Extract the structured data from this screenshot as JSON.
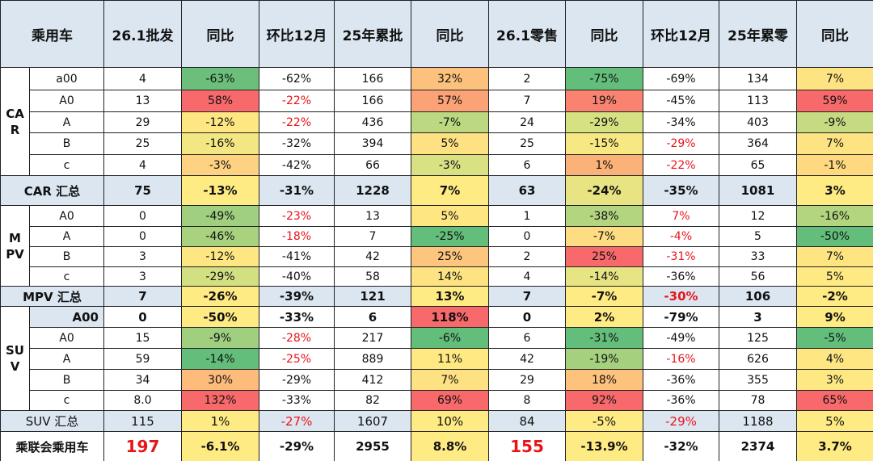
{
  "header": [
    "乘用车",
    "26.1批发",
    "同比",
    "环比12月",
    "25年累批",
    "同比",
    "26.1零售",
    "同比",
    "环比12月",
    "25年累零",
    "同比"
  ],
  "fill_columns": [
    2,
    5,
    7,
    10
  ],
  "groups": [
    {
      "label": "CAR",
      "rows": [
        {
          "cells": [
            "a00",
            "4",
            "-63%",
            "-62%",
            "166",
            "32%",
            "2",
            "-75%",
            "-69%",
            "134",
            "7%"
          ],
          "fills": [
            "#6bbf7b",
            "#fcc17c",
            "#63be7b",
            "#fee382"
          ],
          "red": []
        },
        {
          "cells": [
            "A0",
            "13",
            "58%",
            "-22%",
            "166",
            "57%",
            "7",
            "19%",
            "-45%",
            "113",
            "59%"
          ],
          "fills": [
            "#f8696b",
            "#fba276",
            "#f98370",
            "#f8696b"
          ],
          "red": [
            3
          ]
        },
        {
          "cells": [
            "A",
            "29",
            "-12%",
            "-22%",
            "436",
            "-7%",
            "24",
            "-29%",
            "-34%",
            "403",
            "-9%"
          ],
          "fills": [
            "#fee683",
            "#bcd881",
            "#d6e182",
            "#c6db81"
          ],
          "red": [
            3
          ]
        },
        {
          "cells": [
            "B",
            "25",
            "-16%",
            "-32%",
            "394",
            "5%",
            "25",
            "-15%",
            "-29%",
            "364",
            "7%"
          ],
          "fills": [
            "#f3e783",
            "#fee182",
            "#f7e883",
            "#fee382"
          ],
          "red": [
            8
          ]
        },
        {
          "cells": [
            "c",
            "4",
            "-3%",
            "-42%",
            "66",
            "-3%",
            "6",
            "1%",
            "-22%",
            "65",
            "-1%"
          ],
          "fills": [
            "#fed280",
            "#d9e182",
            "#fbb279",
            "#fed980"
          ],
          "red": [
            8
          ]
        }
      ],
      "summary": {
        "cells": [
          "CAR 汇总",
          "75",
          "-13%",
          "-31%",
          "1228",
          "7%",
          "63",
          "-24%",
          "-35%",
          "1081",
          "3%"
        ],
        "fills": [
          "#ffeb84",
          "#ffeb84",
          "#e8e483",
          "#ffeb84"
        ],
        "red": []
      }
    },
    {
      "label": "MPV",
      "rows": [
        {
          "cells": [
            "A0",
            "0",
            "-49%",
            "-23%",
            "13",
            "5%",
            "1",
            "-38%",
            "7%",
            "12",
            "-16%"
          ],
          "fills": [
            "#9fcf7f",
            "#fee683",
            "#b3d580",
            "#b3d580"
          ],
          "red": [
            3,
            8
          ]
        },
        {
          "cells": [
            "A",
            "0",
            "-46%",
            "-18%",
            "7",
            "-25%",
            "0",
            "-7%",
            "-4%",
            "5",
            "-50%"
          ],
          "fills": [
            "#a9d27f",
            "#63be7b",
            "#fedc81",
            "#63be7b"
          ],
          "red": [
            3,
            8
          ]
        },
        {
          "cells": [
            "B",
            "3",
            "-12%",
            "-41%",
            "42",
            "25%",
            "2",
            "25%",
            "-31%",
            "33",
            "7%"
          ],
          "fills": [
            "#fee683",
            "#fdc57d",
            "#f8696b",
            "#fee582"
          ],
          "red": [
            8
          ]
        },
        {
          "cells": [
            "c",
            "3",
            "-29%",
            "-40%",
            "58",
            "14%",
            "4",
            "-14%",
            "-36%",
            "56",
            "5%"
          ],
          "fills": [
            "#d3e082",
            "#fee382",
            "#e7e483",
            "#fee983"
          ],
          "red": []
        }
      ],
      "summary": {
        "cells": [
          "MPV 汇总",
          "7",
          "-26%",
          "-39%",
          "121",
          "13%",
          "7",
          "-7%",
          "-30%",
          "106",
          "-2%"
        ],
        "fills": [
          "#ffeb84",
          "#ffeb84",
          "#ffeb84",
          "#ffeb84"
        ],
        "red": [
          8
        ]
      }
    },
    {
      "label": "SUV",
      "rows": [
        {
          "cells": [
            "A00",
            "0",
            "-50%",
            "-33%",
            "6",
            "118%",
            "0",
            "2%",
            "-79%",
            "3",
            "9%"
          ],
          "fills": [
            "#ffeb84",
            "#f8696b",
            "#ffeb84",
            "#ffeb84"
          ],
          "red": [],
          "bold": true
        },
        {
          "cells": [
            "A0",
            "15",
            "-9%",
            "-28%",
            "217",
            "-6%",
            "6",
            "-31%",
            "-49%",
            "125",
            "-5%"
          ],
          "fills": [
            "#9fcf7f",
            "#63be7b",
            "#63be7b",
            "#63be7b"
          ],
          "red": [
            3
          ]
        },
        {
          "cells": [
            "A",
            "59",
            "-14%",
            "-25%",
            "889",
            "11%",
            "42",
            "-19%",
            "-16%",
            "626",
            "4%"
          ],
          "fills": [
            "#63be7b",
            "#fee983",
            "#a5d17f",
            "#fee683"
          ],
          "red": [
            3,
            8
          ]
        },
        {
          "cells": [
            "B",
            "34",
            "30%",
            "-29%",
            "412",
            "7%",
            "29",
            "18%",
            "-36%",
            "355",
            "3%"
          ],
          "fills": [
            "#fdbc7b",
            "#fee182",
            "#fdc27c",
            "#fee883"
          ],
          "red": []
        },
        {
          "cells": [
            "c",
            "8.0",
            "132%",
            "-33%",
            "82",
            "69%",
            "8",
            "92%",
            "-36%",
            "78",
            "65%"
          ],
          "fills": [
            "#f8696b",
            "#f8696b",
            "#f8696b",
            "#f8696b"
          ],
          "red": []
        }
      ],
      "summary": {
        "cells": [
          "SUV 汇总",
          "115",
          "1%",
          "-27%",
          "1607",
          "10%",
          "84",
          "-5%",
          "-29%",
          "1188",
          "5%"
        ],
        "fills": [
          "#ffeb84",
          "#ffeb84",
          "#ffeb84",
          "#ffeb84"
        ],
        "red": [
          3,
          8
        ],
        "bold": false
      }
    }
  ],
  "total": {
    "cells": [
      "乘联会乘用车",
      "197",
      "-6.1%",
      "-29%",
      "2955",
      "8.8%",
      "155",
      "-13.9%",
      "-32%",
      "2374",
      "3.7%"
    ],
    "fills": [
      "#ffeb84",
      "#ffeb84",
      "#ffeb84",
      "#ffeb84"
    ],
    "red": [
      1,
      6
    ]
  }
}
